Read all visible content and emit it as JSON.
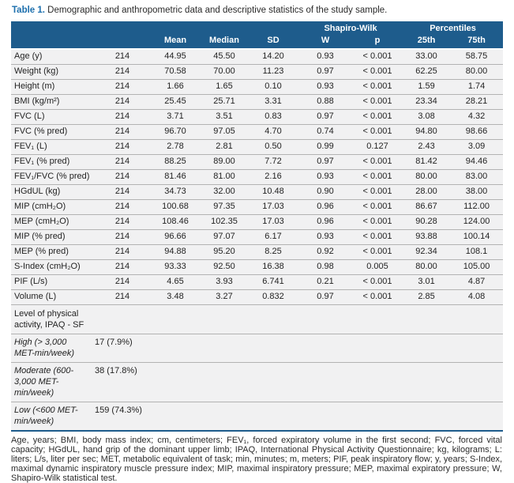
{
  "title": {
    "label": "Table 1.",
    "text": "Demographic and anthropometric data and descriptive statistics of the study sample."
  },
  "colors": {
    "header_bg": "#1e5c8c",
    "title_blue": "#1c6fad",
    "row_bg": "#f1f1f2",
    "row_rule": "#b3b3b3",
    "bottom_border": "#1e5c8c"
  },
  "table": {
    "group_header": {
      "shapiro": "Shapiro-Wilk",
      "percentiles": "Percentiles"
    },
    "columns": {
      "mean": "Mean",
      "median": "Median",
      "sd": "SD",
      "w": "W",
      "p": "p",
      "p25": "25th",
      "p75": "75th"
    },
    "rows": [
      {
        "param": "Age (y)",
        "n": "214",
        "mean": "44.95",
        "median": "45.50",
        "sd": "14.20",
        "w": "0.93",
        "p": "< 0.001",
        "p25": "33.00",
        "p75": "58.75"
      },
      {
        "param": "Weight (kg)",
        "n": "214",
        "mean": "70.58",
        "median": "70.00",
        "sd": "11.23",
        "w": "0.97",
        "p": "< 0.001",
        "p25": "62.25",
        "p75": "80.00"
      },
      {
        "param": "Height (m)",
        "n": "214",
        "mean": "1.66",
        "median": "1.65",
        "sd": "0.10",
        "w": "0.93",
        "p": "< 0.001",
        "p25": "1.59",
        "p75": "1.74"
      },
      {
        "param": "BMI (kg/m²)",
        "n": "214",
        "mean": "25.45",
        "median": "25.71",
        "sd": "3.31",
        "w": "0.88",
        "p": "< 0.001",
        "p25": "23.34",
        "p75": "28.21"
      },
      {
        "param": "FVC (L)",
        "n": "214",
        "mean": "3.71",
        "median": "3.51",
        "sd": "0.83",
        "w": "0.97",
        "p": "< 0.001",
        "p25": "3.08",
        "p75": "4.32"
      },
      {
        "param": "FVC (% pred)",
        "n": "214",
        "mean": "96.70",
        "median": "97.05",
        "sd": "4.70",
        "w": "0.74",
        "p": "< 0.001",
        "p25": "94.80",
        "p75": "98.66"
      },
      {
        "param": "FEV₁ (L)",
        "n": "214",
        "mean": "2.78",
        "median": "2.81",
        "sd": "0.50",
        "w": "0.99",
        "p": "0.127",
        "p25": "2.43",
        "p75": "3.09"
      },
      {
        "param": "FEV₁ (% pred)",
        "n": "214",
        "mean": "88.25",
        "median": "89.00",
        "sd": "7.72",
        "w": "0.97",
        "p": "< 0.001",
        "p25": "81.42",
        "p75": "94.46"
      },
      {
        "param": "FEV₁/FVC (% pred)",
        "n": "214",
        "mean": "81.46",
        "median": "81.00",
        "sd": "2.16",
        "w": "0.93",
        "p": "< 0.001",
        "p25": "80.00",
        "p75": "83.00"
      },
      {
        "param": "HGdUL (kg)",
        "n": "214",
        "mean": "34.73",
        "median": "32.00",
        "sd": "10.48",
        "w": "0.90",
        "p": "< 0.001",
        "p25": "28.00",
        "p75": "38.00"
      },
      {
        "param": "MIP (cmH₂O)",
        "n": "214",
        "mean": "100.68",
        "median": "97.35",
        "sd": "17.03",
        "w": "0.96",
        "p": "< 0.001",
        "p25": "86.67",
        "p75": "112.00"
      },
      {
        "param": "MEP (cmH₂O)",
        "n": "214",
        "mean": "108.46",
        "median": "102.35",
        "sd": "17.03",
        "w": "0.96",
        "p": "< 0.001",
        "p25": "90.28",
        "p75": "124.00"
      },
      {
        "param": "MIP (% pred)",
        "n": "214",
        "mean": "96.66",
        "median": "97.07",
        "sd": "6.17",
        "w": "0.93",
        "p": "< 0.001",
        "p25": "93.88",
        "p75": "100.14"
      },
      {
        "param": "MEP (% pred)",
        "n": "214",
        "mean": "94.88",
        "median": "95.20",
        "sd": "8.25",
        "w": "0.92",
        "p": "< 0.001",
        "p25": "92.34",
        "p75": "108.1"
      },
      {
        "param": "S-Index (cmH₂O)",
        "n": "214",
        "mean": "93.33",
        "median": "92.50",
        "sd": "16.38",
        "w": "0.98",
        "p": "0.005",
        "p25": "80.00",
        "p75": "105.00"
      },
      {
        "param": "PIF (L/s)",
        "n": "214",
        "mean": "4.65",
        "median": "3.93",
        "sd": "6.741",
        "w": "0.21",
        "p": "< 0.001",
        "p25": "3.01",
        "p75": "4.87"
      },
      {
        "param": "Volume (L)",
        "n": "214",
        "mean": "3.48",
        "median": "3.27",
        "sd": "0.832",
        "w": "0.97",
        "p": "< 0.001",
        "p25": "2.85",
        "p75": "4.08"
      }
    ],
    "section": {
      "label": "Level of physical activity, IPAQ - SF"
    },
    "categories": [
      {
        "label": "High (> 3,000 MET-min/week)",
        "value": "17 (7.9%)"
      },
      {
        "label": "Moderate (600-3,000 MET-min/week)",
        "value": "38 (17.8%)"
      },
      {
        "label": "Low (<600 MET-min/week)",
        "value": "159 (74.3%)"
      }
    ]
  },
  "footnote": "Age, years; BMI, body mass index; cm, centimeters; FEV₁, forced expiratory volume in the first second; FVC, forced vital capacity; HGdUL, hand grip of the dominant upper limb; IPAQ, International Physical Activity Questionnaire; kg, kilograms; L: liters; L/s, liter per sec; MET, metabolic equivalent of task; min, minutes; m, meters; PIF, peak inspiratory flow; y, years; S-Index, maximal dynamic inspiratory muscle pressure index; MIP, maximal inspiratory pressure; MEP, maximal expiratory pressure; W, Shapiro-Wilk statistical test."
}
